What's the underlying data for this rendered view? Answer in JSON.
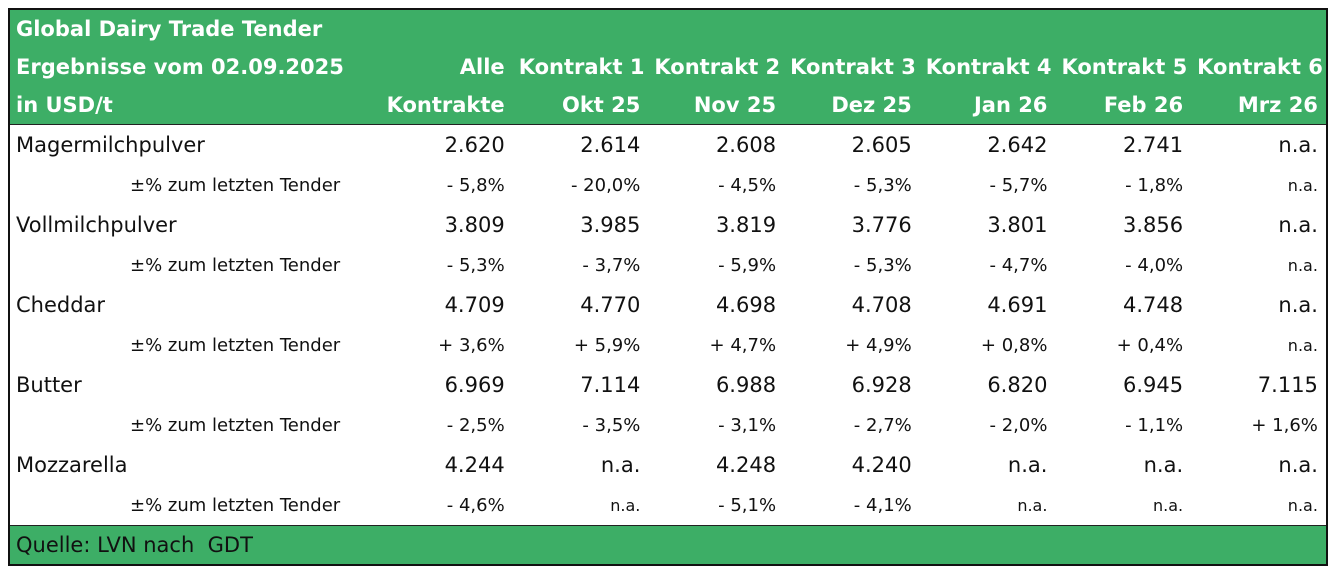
{
  "header": {
    "title_lines": [
      "Global Dairy Trade Tender",
      "Ergebnisse vom 02.09.2025",
      "in USD/t"
    ]
  },
  "columns": [
    {
      "line1": "Alle",
      "line2": "Kontrakte"
    },
    {
      "line1": "Kontrakt 1",
      "line2": "Okt 25"
    },
    {
      "line1": "Kontrakt 2",
      "line2": "Nov 25"
    },
    {
      "line1": "Kontrakt 3",
      "line2": "Dez 25"
    },
    {
      "line1": "Kontrakt 4",
      "line2": "Jan 26"
    },
    {
      "line1": "Kontrakt 5",
      "line2": "Feb 26"
    },
    {
      "line1": "Kontrakt 6",
      "line2": "Mrz 26"
    }
  ],
  "rows": [
    {
      "product": "Magermilchpulver",
      "values": [
        "2.620",
        "2.614",
        "2.608",
        "2.605",
        "2.642",
        "2.741",
        "n.a."
      ],
      "change_label": "±% zum letzten Tender",
      "changes": [
        "- 5,8%",
        "- 20,0%",
        "- 4,5%",
        "- 5,3%",
        "- 5,7%",
        "- 1,8%",
        "n.a."
      ]
    },
    {
      "product": "Vollmilchpulver",
      "values": [
        "3.809",
        "3.985",
        "3.819",
        "3.776",
        "3.801",
        "3.856",
        "n.a."
      ],
      "change_label": "±% zum letzten Tender",
      "changes": [
        "- 5,3%",
        "- 3,7%",
        "- 5,9%",
        "- 5,3%",
        "- 4,7%",
        "- 4,0%",
        "n.a."
      ]
    },
    {
      "product": "Cheddar",
      "values": [
        "4.709",
        "4.770",
        "4.698",
        "4.708",
        "4.691",
        "4.748",
        "n.a."
      ],
      "change_label": "±% zum letzten Tender",
      "changes": [
        "+ 3,6%",
        "+ 5,9%",
        "+ 4,7%",
        "+ 4,9%",
        "+ 0,8%",
        "+ 0,4%",
        "n.a."
      ]
    },
    {
      "product": "Butter",
      "values": [
        "6.969",
        "7.114",
        "6.988",
        "6.928",
        "6.820",
        "6.945",
        "7.115"
      ],
      "change_label": "±% zum letzten Tender",
      "changes": [
        "- 2,5%",
        "- 3,5%",
        "- 3,1%",
        "- 2,7%",
        "- 2,0%",
        "- 1,1%",
        "+ 1,6%"
      ]
    },
    {
      "product": "Mozzarella",
      "values": [
        "4.244",
        "n.a.",
        "4.248",
        "4.240",
        "n.a.",
        "n.a.",
        "n.a."
      ],
      "change_label": "±% zum letzten Tender",
      "changes": [
        "- 4,6%",
        "n.a.",
        "- 5,1%",
        "- 4,1%",
        "n.a.",
        "n.a.",
        "n.a."
      ]
    }
  ],
  "footer": "Quelle: LVN nach  GDT"
}
